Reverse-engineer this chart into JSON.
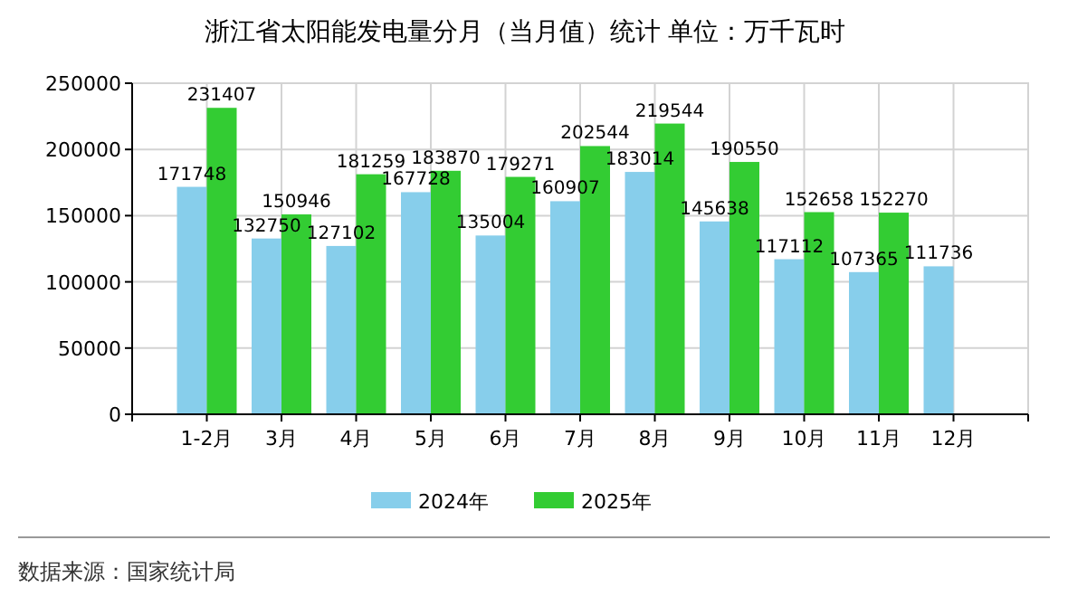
{
  "chart_data": {
    "type": "bar",
    "title": "浙江省太阳能发电量分月（当月值）统计  单位：万千瓦时",
    "categories": [
      "1-2月",
      "3月",
      "4月",
      "5月",
      "6月",
      "7月",
      "8月",
      "9月",
      "10月",
      "11月",
      "12月"
    ],
    "series": [
      {
        "name": "2024年",
        "color": "#87ceeb",
        "values": [
          171748,
          132750,
          127102,
          167728,
          135004,
          160907,
          183014,
          145638,
          117112,
          107365,
          111736
        ]
      },
      {
        "name": "2025年",
        "color": "#33cc33",
        "values": [
          231407,
          150946,
          181259,
          183870,
          179271,
          202544,
          219544,
          190550,
          152658,
          152270,
          null
        ]
      }
    ],
    "ylim": [
      0,
      250000
    ],
    "yticks": [
      0,
      50000,
      100000,
      150000,
      200000,
      250000
    ],
    "grid": true,
    "legend": "bottom",
    "data_labels": true,
    "annotations": [
      "数据来源：国家统计局"
    ]
  }
}
